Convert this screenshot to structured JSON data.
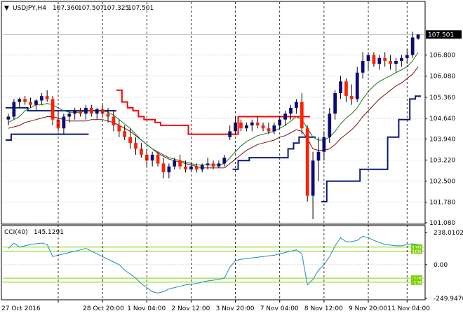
{
  "header": {
    "symbol": "USDJPY,H4",
    "open": "107.360",
    "high": "107.507",
    "low": "107.325",
    "close": "107.501"
  },
  "colors": {
    "bull": "#0b0b78",
    "bear": "#ff2000",
    "ema_green": "#1f7a1f",
    "ema_dark": "#7a0f0f",
    "channel_red": "#ff0000",
    "channel_blue": "#0b1a7a",
    "cci_line": "#1e8bc3",
    "cci_level": "#7fd000",
    "grid": "#c8c8c8"
  },
  "chart_data": [
    {
      "type": "candlestick",
      "title": "USDJPY,H4",
      "ylim": [
        101.08,
        108.2
      ],
      "y_ticks": [
        "107.501",
        "106.800",
        "106.080",
        "105.360",
        "104.640",
        "103.940",
        "103.220",
        "102.500",
        "101.780",
        "101.080"
      ],
      "current_price": "107.501",
      "x_ticks": [
        "27 Oct 2016",
        "28 Oct 20:00",
        "1 Nov 04:00",
        "2 Nov 12:00",
        "3 Nov 20:00",
        "7 Nov 04:00",
        "8 Nov 12:00",
        "9 Nov 20:00",
        "11 Nov 04:00"
      ],
      "candles": [
        [
          104.6,
          104.8,
          104.4,
          104.7
        ],
        [
          104.7,
          105.3,
          104.6,
          105.2
        ],
        [
          105.2,
          105.35,
          105.0,
          105.3
        ],
        [
          105.3,
          105.4,
          105.1,
          105.2
        ],
        [
          105.2,
          105.35,
          105.0,
          105.1
        ],
        [
          105.1,
          105.3,
          104.9,
          105.25
        ],
        [
          105.25,
          105.5,
          105.1,
          105.4
        ],
        [
          105.4,
          105.6,
          105.2,
          105.3
        ],
        [
          105.3,
          105.4,
          104.4,
          104.6
        ],
        [
          104.6,
          104.9,
          104.2,
          104.3
        ],
        [
          104.3,
          104.8,
          104.1,
          104.7
        ],
        [
          104.7,
          104.9,
          104.5,
          104.8
        ],
        [
          104.8,
          105.0,
          104.6,
          104.9
        ],
        [
          104.9,
          105.0,
          104.7,
          104.8
        ],
        [
          104.8,
          105.1,
          104.6,
          105.0
        ],
        [
          105.0,
          105.1,
          104.7,
          104.8
        ],
        [
          104.8,
          105.0,
          104.6,
          104.95
        ],
        [
          104.95,
          105.1,
          104.7,
          104.8
        ],
        [
          104.8,
          105.0,
          104.5,
          104.7
        ],
        [
          104.7,
          104.9,
          104.2,
          104.4
        ],
        [
          104.4,
          104.6,
          104.0,
          104.2
        ],
        [
          104.2,
          104.4,
          103.9,
          104.0
        ],
        [
          104.0,
          104.3,
          103.6,
          103.8
        ],
        [
          103.8,
          104.0,
          103.4,
          103.6
        ],
        [
          103.6,
          103.8,
          103.3,
          103.4
        ],
        [
          103.4,
          103.6,
          103.0,
          103.2
        ],
        [
          103.2,
          103.5,
          103.0,
          103.4
        ],
        [
          103.4,
          103.5,
          103.0,
          103.1
        ],
        [
          103.1,
          103.3,
          102.6,
          102.8
        ],
        [
          102.8,
          103.1,
          102.6,
          103.0
        ],
        [
          103.0,
          103.3,
          102.9,
          103.2
        ],
        [
          103.2,
          103.4,
          102.9,
          103.0
        ],
        [
          103.0,
          103.2,
          102.8,
          102.9
        ],
        [
          102.9,
          103.1,
          102.8,
          103.0
        ],
        [
          103.0,
          103.1,
          102.8,
          102.9
        ],
        [
          102.9,
          103.1,
          102.8,
          103.05
        ],
        [
          103.05,
          103.3,
          102.9,
          103.1
        ],
        [
          103.1,
          103.2,
          102.9,
          103.0
        ],
        [
          103.0,
          103.2,
          102.95,
          103.1
        ],
        [
          103.1,
          103.4,
          103.0,
          103.3
        ],
        [
          104.0,
          104.4,
          103.9,
          104.2
        ],
        [
          104.2,
          104.7,
          104.1,
          104.5
        ],
        [
          104.5,
          104.6,
          104.2,
          104.3
        ],
        [
          104.3,
          104.5,
          104.2,
          104.4
        ],
        [
          104.4,
          104.6,
          104.2,
          104.5
        ],
        [
          104.5,
          104.7,
          104.3,
          104.4
        ],
        [
          104.4,
          104.5,
          104.2,
          104.3
        ],
        [
          104.3,
          104.5,
          104.1,
          104.2
        ],
        [
          104.2,
          104.5,
          104.1,
          104.4
        ],
        [
          104.4,
          104.7,
          104.3,
          104.6
        ],
        [
          104.6,
          104.9,
          104.4,
          104.8
        ],
        [
          104.8,
          105.1,
          104.6,
          105.0
        ],
        [
          105.0,
          105.3,
          104.8,
          105.2
        ],
        [
          105.2,
          105.5,
          104.1,
          104.3
        ],
        [
          104.3,
          104.4,
          101.8,
          102.0
        ],
        [
          102.0,
          103.5,
          101.2,
          103.2
        ],
        [
          103.2,
          104.0,
          102.5,
          103.5
        ],
        [
          103.5,
          104.2,
          103.2,
          104.0
        ],
        [
          104.0,
          105.0,
          103.8,
          104.8
        ],
        [
          104.8,
          105.6,
          104.6,
          105.5
        ],
        [
          105.5,
          106.1,
          105.3,
          105.9
        ],
        [
          105.9,
          106.0,
          105.2,
          105.4
        ],
        [
          105.4,
          105.8,
          105.1,
          105.3
        ],
        [
          105.3,
          106.4,
          105.2,
          106.2
        ],
        [
          106.2,
          106.9,
          106.0,
          106.6
        ],
        [
          106.6,
          106.9,
          106.3,
          106.8
        ],
        [
          106.8,
          106.9,
          106.4,
          106.5
        ],
        [
          106.5,
          106.8,
          106.3,
          106.7
        ],
        [
          106.7,
          106.9,
          106.4,
          106.6
        ],
        [
          106.6,
          106.8,
          106.3,
          106.5
        ],
        [
          106.5,
          106.7,
          106.2,
          106.6
        ],
        [
          106.6,
          106.8,
          106.4,
          106.7
        ],
        [
          106.7,
          107.0,
          106.5,
          106.8
        ],
        [
          106.8,
          107.6,
          106.7,
          107.4
        ],
        [
          107.36,
          107.507,
          107.325,
          107.501
        ]
      ],
      "ema_fast": [
        104.5,
        104.6,
        104.7,
        104.9,
        105.0,
        105.1,
        105.1,
        105.15,
        105.1,
        105.0,
        104.9,
        104.85,
        104.85,
        104.85,
        104.9,
        104.9,
        104.9,
        104.9,
        104.85,
        104.75,
        104.6,
        104.45,
        104.3,
        104.1,
        103.9,
        103.75,
        103.6,
        103.5,
        103.4,
        103.3,
        103.25,
        103.2,
        103.15,
        103.1,
        103.05,
        103.05,
        103.05,
        103.05,
        103.05,
        103.1,
        103.3,
        103.5,
        103.7,
        103.85,
        103.95,
        104.05,
        104.1,
        104.15,
        104.2,
        104.3,
        104.4,
        104.55,
        104.7,
        104.6,
        104.3,
        104.0,
        103.9,
        103.9,
        104.0,
        104.2,
        104.45,
        104.65,
        104.8,
        105.0,
        105.3,
        105.55,
        105.75,
        105.9,
        106.0,
        106.1,
        106.2,
        106.3,
        106.4,
        106.6,
        106.9
      ],
      "ema_slow": [
        104.3,
        104.35,
        104.4,
        104.5,
        104.55,
        104.6,
        104.65,
        104.7,
        104.7,
        104.65,
        104.6,
        104.55,
        104.55,
        104.55,
        104.55,
        104.6,
        104.6,
        104.6,
        104.55,
        104.5,
        104.4,
        104.3,
        104.2,
        104.05,
        103.9,
        103.75,
        103.6,
        103.45,
        103.35,
        103.25,
        103.2,
        103.15,
        103.1,
        103.05,
        103.0,
        102.95,
        102.95,
        102.95,
        102.95,
        102.95,
        103.1,
        103.25,
        103.4,
        103.55,
        103.65,
        103.75,
        103.8,
        103.85,
        103.9,
        104.0,
        104.05,
        104.15,
        104.25,
        104.2,
        103.95,
        103.6,
        103.55,
        103.55,
        103.6,
        103.75,
        103.95,
        104.1,
        104.25,
        104.45,
        104.7,
        104.9,
        105.1,
        105.3,
        105.45,
        105.6,
        105.75,
        105.85,
        106.0,
        106.15,
        106.4
      ],
      "channel_high": [
        null,
        null,
        null,
        null,
        null,
        null,
        null,
        null,
        null,
        null,
        null,
        null,
        null,
        null,
        null,
        null,
        null,
        null,
        null,
        null,
        105.6,
        105.2,
        105.0,
        104.9,
        104.7,
        104.6,
        104.6,
        104.5,
        104.4,
        104.4,
        104.4,
        104.4,
        104.4,
        104.1,
        104.1,
        104.1,
        104.1,
        104.1,
        104.1,
        104.1,
        104.1,
        104.1,
        104.7,
        104.7,
        104.7,
        104.7,
        104.7,
        104.7,
        104.7,
        104.7,
        104.7,
        104.7,
        104.7,
        104.7,
        104.7
      ],
      "channel_low": [
        103.9,
        104.1,
        104.1,
        104.1,
        104.1,
        104.1,
        104.1,
        104.1,
        104.1,
        104.1,
        104.1,
        104.1,
        104.1,
        104.1,
        104.1,
        null,
        null,
        null,
        null,
        null,
        null,
        null,
        null,
        null,
        null,
        null,
        null,
        null,
        null,
        null,
        null,
        null,
        null,
        null,
        null,
        null,
        null,
        null,
        null,
        null,
        null,
        102.9,
        103.2,
        103.2,
        103.3,
        103.3,
        103.3,
        103.3,
        103.3,
        103.3,
        103.3,
        103.6,
        103.8,
        104.0,
        104.0,
        104.0,
        null,
        101.8,
        102.5,
        102.5,
        102.5,
        102.5,
        102.5,
        102.5,
        102.9,
        102.9,
        102.9,
        102.9,
        102.9,
        104.0,
        104.0,
        104.6,
        104.6,
        105.3,
        105.4
      ],
      "channel_prev_high": [
        105.0,
        105.0,
        105.0,
        105.0,
        104.9,
        104.9,
        104.9,
        104.9,
        104.9,
        104.9,
        104.9,
        104.9,
        104.9,
        104.9,
        104.9,
        104.9,
        104.9,
        104.9,
        104.9,
        104.9
      ]
    },
    {
      "type": "line",
      "title": "CCI(40) 145.1291",
      "ylim": [
        -249.9476,
        238.0102
      ],
      "y_ticks": [
        "238.0102",
        "0.00",
        "-249.9476"
      ],
      "levels": [
        {
          "value": 130,
          "label": "130"
        },
        {
          "value": 100,
          "label": "100"
        },
        {
          "value": -100,
          "label": "-100"
        },
        {
          "value": -130,
          "label": "-130"
        }
      ],
      "values": [
        120,
        160,
        130,
        140,
        150,
        155,
        160,
        150,
        60,
        70,
        80,
        90,
        100,
        110,
        120,
        100,
        80,
        60,
        40,
        20,
        0,
        -40,
        -70,
        -100,
        -140,
        -170,
        -200,
        -210,
        -200,
        -180,
        -170,
        -160,
        -150,
        -145,
        -140,
        -130,
        -120,
        -115,
        -110,
        -100,
        -20,
        30,
        40,
        45,
        50,
        55,
        60,
        65,
        70,
        80,
        90,
        100,
        110,
        80,
        -150,
        -110,
        -40,
        0,
        60,
        140,
        200,
        170,
        170,
        180,
        210,
        200,
        180,
        165,
        150,
        145,
        140,
        140,
        150,
        155,
        145.1291
      ]
    }
  ],
  "cci_header": {
    "label": "CCI(40)",
    "value": "145.1291"
  }
}
